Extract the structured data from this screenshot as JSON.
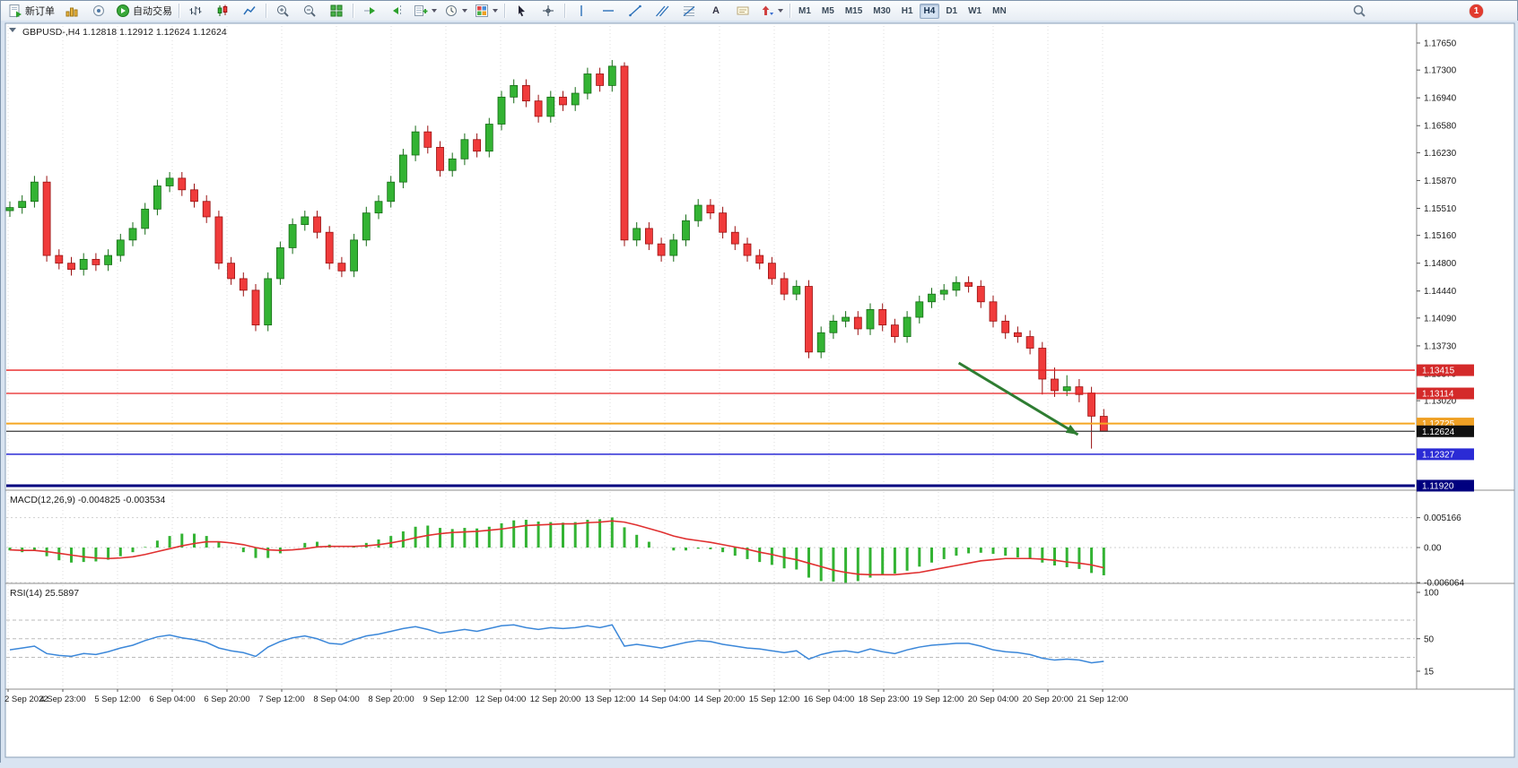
{
  "window": {
    "badge_count": "1"
  },
  "toolbar": {
    "new_order_label": "新订单",
    "auto_trading_label": "自动交易",
    "text_tool_glyph": "A",
    "timeframes": [
      "M1",
      "M5",
      "M15",
      "M30",
      "H1",
      "H4",
      "D1",
      "W1",
      "MN"
    ],
    "active_timeframe": "H4"
  },
  "chart_data": {
    "type": "candlestick",
    "symbol": "GBPUSD-",
    "period": "H4",
    "header_label": "GBPUSD-,H4",
    "header_ohlc": [
      "1.12818",
      "1.12912",
      "1.12624",
      "1.12624"
    ],
    "colors": {
      "up": "#33b333",
      "down": "#f03b3b",
      "up_border": "#166b16",
      "down_border": "#991111"
    },
    "price_axis_labels": [
      "1.17650",
      "1.17300",
      "1.16940",
      "1.16580",
      "1.16230",
      "1.15870",
      "1.15510",
      "1.15160",
      "1.14800",
      "1.14440",
      "1.14090",
      "1.13730",
      "1.13370",
      "1.13020"
    ],
    "levels": [
      {
        "price": 1.13415,
        "label": "1.13415",
        "color": "#d42a2a",
        "line_color": "#e82222",
        "width": 1.3
      },
      {
        "price": 1.13114,
        "label": "1.13114",
        "color": "#d42a2a",
        "line_color": "#e82222",
        "width": 1.3
      },
      {
        "price": 1.12725,
        "label": "1.12725",
        "color": "#efa024",
        "line_color": "#f5a623",
        "width": 2
      },
      {
        "price": 1.12624,
        "label": "1.12624",
        "color": "#101010",
        "line_color": "#3a3a3a",
        "width": 1.2
      },
      {
        "price": 1.12327,
        "label": "1.12327",
        "color": "#2b2bd5",
        "line_color": "#2b2bd5",
        "width": 1.5
      },
      {
        "price": 1.1192,
        "label": "1.11920",
        "color": "#00007f",
        "line_color": "#00007f",
        "width": 3
      }
    ],
    "candles": [
      [
        1.1548,
        1.156,
        1.154,
        1.1552
      ],
      [
        1.1552,
        1.1568,
        1.1544,
        1.156
      ],
      [
        1.156,
        1.1593,
        1.1552,
        1.1585
      ],
      [
        1.1585,
        1.1593,
        1.1482,
        1.149
      ],
      [
        1.149,
        1.1498,
        1.1472,
        1.148
      ],
      [
        1.148,
        1.1488,
        1.1464,
        1.1472
      ],
      [
        1.1472,
        1.1493,
        1.1464,
        1.1485
      ],
      [
        1.1485,
        1.1493,
        1.147,
        1.1478
      ],
      [
        1.1478,
        1.1498,
        1.147,
        1.149
      ],
      [
        1.149,
        1.1518,
        1.1482,
        1.151
      ],
      [
        1.151,
        1.1533,
        1.1502,
        1.1525
      ],
      [
        1.1525,
        1.1558,
        1.1517,
        1.155
      ],
      [
        1.155,
        1.1588,
        1.1542,
        1.158
      ],
      [
        1.158,
        1.1598,
        1.1572,
        1.159
      ],
      [
        1.159,
        1.1598,
        1.1567,
        1.1575
      ],
      [
        1.1575,
        1.1583,
        1.1552,
        1.156
      ],
      [
        1.156,
        1.1568,
        1.1532,
        1.154
      ],
      [
        1.154,
        1.1548,
        1.1472,
        1.148
      ],
      [
        1.148,
        1.1488,
        1.1452,
        1.146
      ],
      [
        1.146,
        1.1468,
        1.1437,
        1.1445
      ],
      [
        1.1445,
        1.1453,
        1.1392,
        1.14
      ],
      [
        1.14,
        1.1468,
        1.1392,
        1.146
      ],
      [
        1.146,
        1.1508,
        1.1452,
        1.15
      ],
      [
        1.15,
        1.1538,
        1.1492,
        1.153
      ],
      [
        1.153,
        1.1548,
        1.1522,
        1.154
      ],
      [
        1.154,
        1.1548,
        1.1512,
        1.152
      ],
      [
        1.152,
        1.1528,
        1.1472,
        1.148
      ],
      [
        1.148,
        1.1488,
        1.1462,
        1.147
      ],
      [
        1.147,
        1.1518,
        1.1462,
        1.151
      ],
      [
        1.151,
        1.1553,
        1.1502,
        1.1545
      ],
      [
        1.1545,
        1.1568,
        1.1537,
        1.156
      ],
      [
        1.156,
        1.1593,
        1.1552,
        1.1585
      ],
      [
        1.1585,
        1.1628,
        1.1577,
        1.162
      ],
      [
        1.162,
        1.1658,
        1.1612,
        1.165
      ],
      [
        1.165,
        1.1658,
        1.1622,
        1.163
      ],
      [
        1.163,
        1.1638,
        1.1592,
        1.16
      ],
      [
        1.16,
        1.1623,
        1.1592,
        1.1615
      ],
      [
        1.1615,
        1.1648,
        1.1607,
        1.164
      ],
      [
        1.164,
        1.1648,
        1.1617,
        1.1625
      ],
      [
        1.1625,
        1.1668,
        1.1617,
        1.166
      ],
      [
        1.166,
        1.1703,
        1.1652,
        1.1695
      ],
      [
        1.1695,
        1.1718,
        1.1687,
        1.171
      ],
      [
        1.171,
        1.1718,
        1.1682,
        1.169
      ],
      [
        1.169,
        1.1698,
        1.1662,
        1.167
      ],
      [
        1.167,
        1.1703,
        1.1662,
        1.1695
      ],
      [
        1.1695,
        1.1703,
        1.1677,
        1.1685
      ],
      [
        1.1685,
        1.1708,
        1.1677,
        1.17
      ],
      [
        1.17,
        1.1733,
        1.1692,
        1.1725
      ],
      [
        1.1725,
        1.1733,
        1.1702,
        1.171
      ],
      [
        1.171,
        1.1743,
        1.1702,
        1.1735
      ],
      [
        1.1735,
        1.174,
        1.1502,
        1.151
      ],
      [
        1.151,
        1.1533,
        1.1502,
        1.1525
      ],
      [
        1.1525,
        1.1533,
        1.1497,
        1.1505
      ],
      [
        1.1505,
        1.1513,
        1.1482,
        1.149
      ],
      [
        1.149,
        1.1518,
        1.1482,
        1.151
      ],
      [
        1.151,
        1.1543,
        1.1502,
        1.1535
      ],
      [
        1.1535,
        1.1563,
        1.1527,
        1.1555
      ],
      [
        1.1555,
        1.1563,
        1.1537,
        1.1545
      ],
      [
        1.1545,
        1.1553,
        1.1512,
        1.152
      ],
      [
        1.152,
        1.1528,
        1.1497,
        1.1505
      ],
      [
        1.1505,
        1.1513,
        1.1482,
        1.149
      ],
      [
        1.149,
        1.1498,
        1.1472,
        1.148
      ],
      [
        1.148,
        1.1488,
        1.1452,
        1.146
      ],
      [
        1.146,
        1.1468,
        1.1432,
        1.144
      ],
      [
        1.144,
        1.1458,
        1.1432,
        1.145
      ],
      [
        1.145,
        1.1458,
        1.1357,
        1.1365
      ],
      [
        1.1365,
        1.1398,
        1.1357,
        1.139
      ],
      [
        1.139,
        1.1413,
        1.1382,
        1.1405
      ],
      [
        1.1405,
        1.1418,
        1.1397,
        1.141
      ],
      [
        1.141,
        1.1418,
        1.1387,
        1.1395
      ],
      [
        1.1395,
        1.1428,
        1.1387,
        1.142
      ],
      [
        1.142,
        1.1428,
        1.1392,
        1.14
      ],
      [
        1.14,
        1.1408,
        1.1377,
        1.1385
      ],
      [
        1.1385,
        1.1418,
        1.1377,
        1.141
      ],
      [
        1.141,
        1.1438,
        1.1402,
        1.143
      ],
      [
        1.143,
        1.1448,
        1.1422,
        1.144
      ],
      [
        1.144,
        1.1453,
        1.1432,
        1.1445
      ],
      [
        1.1445,
        1.1463,
        1.1437,
        1.1455
      ],
      [
        1.1455,
        1.1463,
        1.1442,
        1.145
      ],
      [
        1.145,
        1.1458,
        1.1422,
        1.143
      ],
      [
        1.143,
        1.1438,
        1.1397,
        1.1405
      ],
      [
        1.1405,
        1.1413,
        1.1382,
        1.139
      ],
      [
        1.139,
        1.1398,
        1.1377,
        1.1385
      ],
      [
        1.1385,
        1.1393,
        1.1362,
        1.137
      ],
      [
        1.137,
        1.1378,
        1.131,
        1.133
      ],
      [
        1.133,
        1.1345,
        1.1307,
        1.1315
      ],
      [
        1.1315,
        1.1335,
        1.1308,
        1.132
      ],
      [
        1.132,
        1.133,
        1.13,
        1.131
      ],
      [
        1.1312,
        1.132,
        1.124,
        1.1282
      ],
      [
        1.12818,
        1.12912,
        1.12624,
        1.12624
      ]
    ],
    "time_labels": [
      "2 Sep 2022",
      "4 Sep 23:00",
      "5 Sep 12:00",
      "6 Sep 04:00",
      "6 Sep 20:00",
      "7 Sep 12:00",
      "8 Sep 04:00",
      "8 Sep 20:00",
      "9 Sep 12:00",
      "12 Sep 04:00",
      "12 Sep 20:00",
      "13 Sep 12:00",
      "14 Sep 04:00",
      "14 Sep 20:00",
      "15 Sep 12:00",
      "16 Sep 04:00",
      "18 Sep 23:00",
      "19 Sep 12:00",
      "20 Sep 04:00",
      "20 Sep 20:00",
      "21 Sep 12:00"
    ],
    "macd": {
      "name": "MACD(12,26,9)",
      "value": "-0.004825",
      "signal_value": "-0.003534",
      "axis_labels": [
        "0.005166",
        "0.00",
        "-0.006064"
      ],
      "colors": {
        "histogram": "#33b333",
        "signal": "#e03030"
      },
      "histogram": [
        -0.0005,
        -0.0008,
        -0.0005,
        -0.0015,
        -0.0022,
        -0.0026,
        -0.0025,
        -0.0024,
        -0.0021,
        -0.0015,
        -0.0008,
        0.0001,
        0.0012,
        0.002,
        0.0024,
        0.0024,
        0.002,
        0.001,
        0.0,
        -0.0008,
        -0.0018,
        -0.0018,
        -0.001,
        0.0,
        0.0008,
        0.001,
        0.0005,
        0.0,
        0.0002,
        0.0008,
        0.0014,
        0.002,
        0.0028,
        0.0036,
        0.0038,
        0.0034,
        0.0032,
        0.0034,
        0.0033,
        0.0036,
        0.0042,
        0.0047,
        0.0048,
        0.0045,
        0.0044,
        0.0043,
        0.0044,
        0.0048,
        0.0049,
        0.0052,
        0.0035,
        0.0022,
        0.001,
        0.0,
        -0.0005,
        -0.0005,
        -0.0002,
        -0.0003,
        -0.0008,
        -0.0014,
        -0.002,
        -0.0025,
        -0.003,
        -0.0036,
        -0.0038,
        -0.0052,
        -0.0058,
        -0.0059,
        -0.0061,
        -0.0058,
        -0.0052,
        -0.0048,
        -0.0045,
        -0.004,
        -0.0033,
        -0.0026,
        -0.002,
        -0.0014,
        -0.001,
        -0.0009,
        -0.0011,
        -0.0014,
        -0.0017,
        -0.002,
        -0.0026,
        -0.0031,
        -0.0034,
        -0.0037,
        -0.0044,
        -0.0048
      ],
      "signal": [
        -0.0004,
        -0.0005,
        -0.0005,
        -0.0007,
        -0.001,
        -0.0013,
        -0.0016,
        -0.0018,
        -0.0019,
        -0.0018,
        -0.0016,
        -0.0012,
        -0.0007,
        -0.0002,
        0.0003,
        0.0007,
        0.001,
        0.001,
        0.0008,
        0.0005,
        0.0,
        -0.0004,
        -0.0005,
        -0.0004,
        -0.0002,
        0.0001,
        0.0002,
        0.0002,
        0.0002,
        0.0003,
        0.0005,
        0.0008,
        0.0012,
        0.0017,
        0.0021,
        0.0024,
        0.0026,
        0.0027,
        0.0028,
        0.003,
        0.0032,
        0.0035,
        0.0038,
        0.0039,
        0.004,
        0.0041,
        0.0041,
        0.0043,
        0.0044,
        0.0046,
        0.0044,
        0.0039,
        0.0033,
        0.0027,
        0.002,
        0.0015,
        0.0012,
        0.0009,
        0.0005,
        0.0001,
        -0.0003,
        -0.0008,
        -0.0012,
        -0.0017,
        -0.0021,
        -0.0027,
        -0.0033,
        -0.0039,
        -0.0043,
        -0.0046,
        -0.0047,
        -0.0047,
        -0.0047,
        -0.0045,
        -0.0043,
        -0.0039,
        -0.0035,
        -0.0031,
        -0.0027,
        -0.0023,
        -0.0021,
        -0.0019,
        -0.0019,
        -0.0019,
        -0.002,
        -0.0022,
        -0.0025,
        -0.0027,
        -0.003,
        -0.0035
      ]
    },
    "rsi": {
      "name": "RSI(14)",
      "value": "25.5897",
      "axis_labels": [
        "100",
        "50",
        "15"
      ],
      "levels": [
        70,
        50,
        30
      ],
      "color": "#3b87d9",
      "values": [
        38,
        40,
        42,
        34,
        32,
        31,
        34,
        33,
        36,
        40,
        43,
        48,
        52,
        54,
        51,
        49,
        46,
        40,
        37,
        35,
        31,
        41,
        47,
        51,
        53,
        50,
        45,
        44,
        49,
        53,
        55,
        58,
        61,
        63,
        60,
        56,
        58,
        60,
        58,
        61,
        64,
        65,
        62,
        60,
        62,
        61,
        62,
        64,
        62,
        65,
        42,
        44,
        42,
        40,
        43,
        46,
        48,
        47,
        44,
        42,
        40,
        39,
        37,
        35,
        37,
        28,
        33,
        36,
        37,
        35,
        39,
        36,
        34,
        38,
        41,
        43,
        44,
        45,
        45,
        42,
        38,
        36,
        35,
        33,
        29,
        27,
        28,
        27,
        24,
        25.5897
      ]
    },
    "arrow": {
      "from_bar": 77.2,
      "from_price": 1.13509,
      "to_bar": 86.9,
      "to_price": 1.12581,
      "color": "#2e7d32"
    }
  }
}
